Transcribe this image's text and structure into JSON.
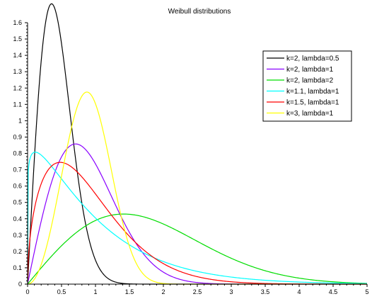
{
  "chart_data": {
    "type": "line",
    "title": "Weibull distributions",
    "xlabel": "",
    "ylabel": "",
    "xlim": [
      0,
      5
    ],
    "ylim": [
      0,
      1.6
    ],
    "x_ticks": [
      "0",
      "0.5",
      "1",
      "1.5",
      "2",
      "2.5",
      "3",
      "3.5",
      "4",
      "4.5",
      "5"
    ],
    "y_ticks": [
      "0",
      "0.1",
      "0.2",
      "0.3",
      "0.4",
      "0.5",
      "0.6",
      "0.7",
      "0.8",
      "0.9",
      "1",
      "1.1",
      "1.2",
      "1.3",
      "1.4",
      "1.5",
      "1.6"
    ],
    "grid": false,
    "legend_position": "top-right",
    "series": [
      {
        "name": "k=2, lambda=0.5",
        "k": 2,
        "lambda": 0.5,
        "color": "#000000"
      },
      {
        "name": "k=2, lambda=1",
        "k": 2,
        "lambda": 1,
        "color": "#8a00ff"
      },
      {
        "name": "k=2, lambda=2",
        "k": 2,
        "lambda": 2,
        "color": "#00dd00"
      },
      {
        "name": "k=1.1, lambda=1",
        "k": 1.1,
        "lambda": 1,
        "color": "#00ffff"
      },
      {
        "name": "k=1.5, lambda=1",
        "k": 1.5,
        "lambda": 1,
        "color": "#ff0000"
      },
      {
        "name": "k=3, lambda=1",
        "k": 3,
        "lambda": 1,
        "color": "#ffff00"
      }
    ]
  }
}
